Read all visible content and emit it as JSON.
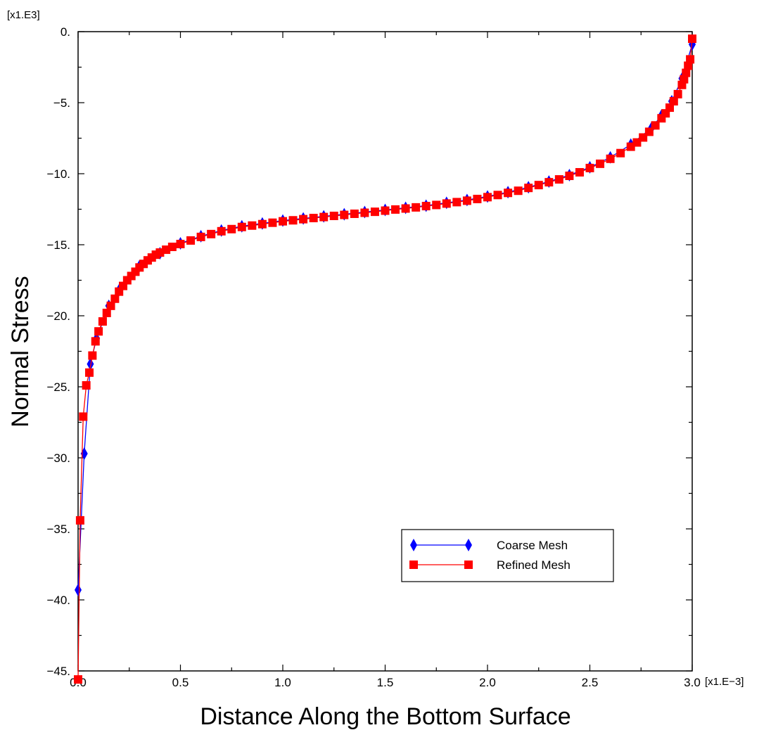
{
  "chart_data": {
    "type": "line",
    "xlabel": "Distance  Along the Bottom Surface",
    "ylabel": "Normal Stress",
    "x_multiplier": "[x1.E−3]",
    "y_multiplier": "[x1.E3]",
    "xlim": [
      0.0,
      3.0
    ],
    "ylim": [
      -45.0,
      0.0
    ],
    "x_ticks": [
      "0.0",
      "0.5",
      "1.0",
      "1.5",
      "2.0",
      "2.5",
      "3.0"
    ],
    "y_ticks": [
      "0.",
      "−5.",
      "−10.",
      "−15.",
      "−20.",
      "−25.",
      "−30.",
      "−35.",
      "−40.",
      "−45."
    ],
    "grid": false,
    "legend_position": "lower-right",
    "series": [
      {
        "name": "Coarse Mesh",
        "color": "#0000ff",
        "marker": "diamond",
        "x": [
          0.0,
          0.03,
          0.06,
          0.09,
          0.15,
          0.2,
          0.3,
          0.4,
          0.5,
          0.6,
          0.7,
          0.8,
          0.9,
          1.0,
          1.1,
          1.2,
          1.3,
          1.4,
          1.5,
          1.6,
          1.7,
          1.8,
          1.9,
          2.0,
          2.1,
          2.2,
          2.3,
          2.4,
          2.5,
          2.6,
          2.7,
          2.8,
          2.85,
          2.9,
          2.95,
          3.0
        ],
        "y": [
          -39.3,
          -29.7,
          -23.4,
          -21.6,
          -19.3,
          -18.2,
          -16.5,
          -15.6,
          -14.9,
          -14.4,
          -14.0,
          -13.7,
          -13.5,
          -13.3,
          -13.15,
          -13.0,
          -12.85,
          -12.7,
          -12.55,
          -12.4,
          -12.25,
          -12.05,
          -11.85,
          -11.6,
          -11.3,
          -10.95,
          -10.55,
          -10.1,
          -9.55,
          -8.85,
          -7.95,
          -6.8,
          -5.9,
          -4.9,
          -3.3,
          -0.9
        ]
      },
      {
        "name": "Refined Mesh",
        "color": "#ff0000",
        "marker": "square",
        "x": [
          0.0,
          0.01,
          0.025,
          0.04,
          0.055,
          0.07,
          0.085,
          0.1,
          0.12,
          0.14,
          0.16,
          0.18,
          0.2,
          0.22,
          0.24,
          0.26,
          0.28,
          0.3,
          0.32,
          0.34,
          0.36,
          0.38,
          0.4,
          0.43,
          0.46,
          0.5,
          0.55,
          0.6,
          0.65,
          0.7,
          0.75,
          0.8,
          0.85,
          0.9,
          0.95,
          1.0,
          1.05,
          1.1,
          1.15,
          1.2,
          1.25,
          1.3,
          1.35,
          1.4,
          1.45,
          1.5,
          1.55,
          1.6,
          1.65,
          1.7,
          1.75,
          1.8,
          1.85,
          1.9,
          1.95,
          2.0,
          2.05,
          2.1,
          2.15,
          2.2,
          2.25,
          2.3,
          2.35,
          2.4,
          2.45,
          2.5,
          2.55,
          2.6,
          2.65,
          2.7,
          2.73,
          2.76,
          2.79,
          2.82,
          2.85,
          2.87,
          2.89,
          2.91,
          2.93,
          2.95,
          2.96,
          2.97,
          2.98,
          2.99,
          3.0
        ],
        "y": [
          -45.6,
          -34.4,
          -27.1,
          -24.9,
          -24.0,
          -22.8,
          -21.8,
          -21.1,
          -20.4,
          -19.8,
          -19.3,
          -18.8,
          -18.3,
          -17.9,
          -17.5,
          -17.2,
          -16.9,
          -16.6,
          -16.35,
          -16.1,
          -15.9,
          -15.7,
          -15.55,
          -15.35,
          -15.15,
          -14.95,
          -14.7,
          -14.45,
          -14.25,
          -14.05,
          -13.9,
          -13.75,
          -13.65,
          -13.55,
          -13.45,
          -13.35,
          -13.28,
          -13.2,
          -13.12,
          -13.05,
          -12.97,
          -12.9,
          -12.82,
          -12.75,
          -12.68,
          -12.6,
          -12.52,
          -12.45,
          -12.37,
          -12.28,
          -12.2,
          -12.1,
          -12.0,
          -11.9,
          -11.78,
          -11.65,
          -11.5,
          -11.35,
          -11.2,
          -11.0,
          -10.8,
          -10.6,
          -10.4,
          -10.15,
          -9.9,
          -9.6,
          -9.3,
          -8.95,
          -8.55,
          -8.1,
          -7.8,
          -7.45,
          -7.05,
          -6.6,
          -6.1,
          -5.75,
          -5.35,
          -4.9,
          -4.4,
          -3.75,
          -3.35,
          -2.9,
          -2.4,
          -1.95,
          -0.5
        ]
      }
    ]
  }
}
